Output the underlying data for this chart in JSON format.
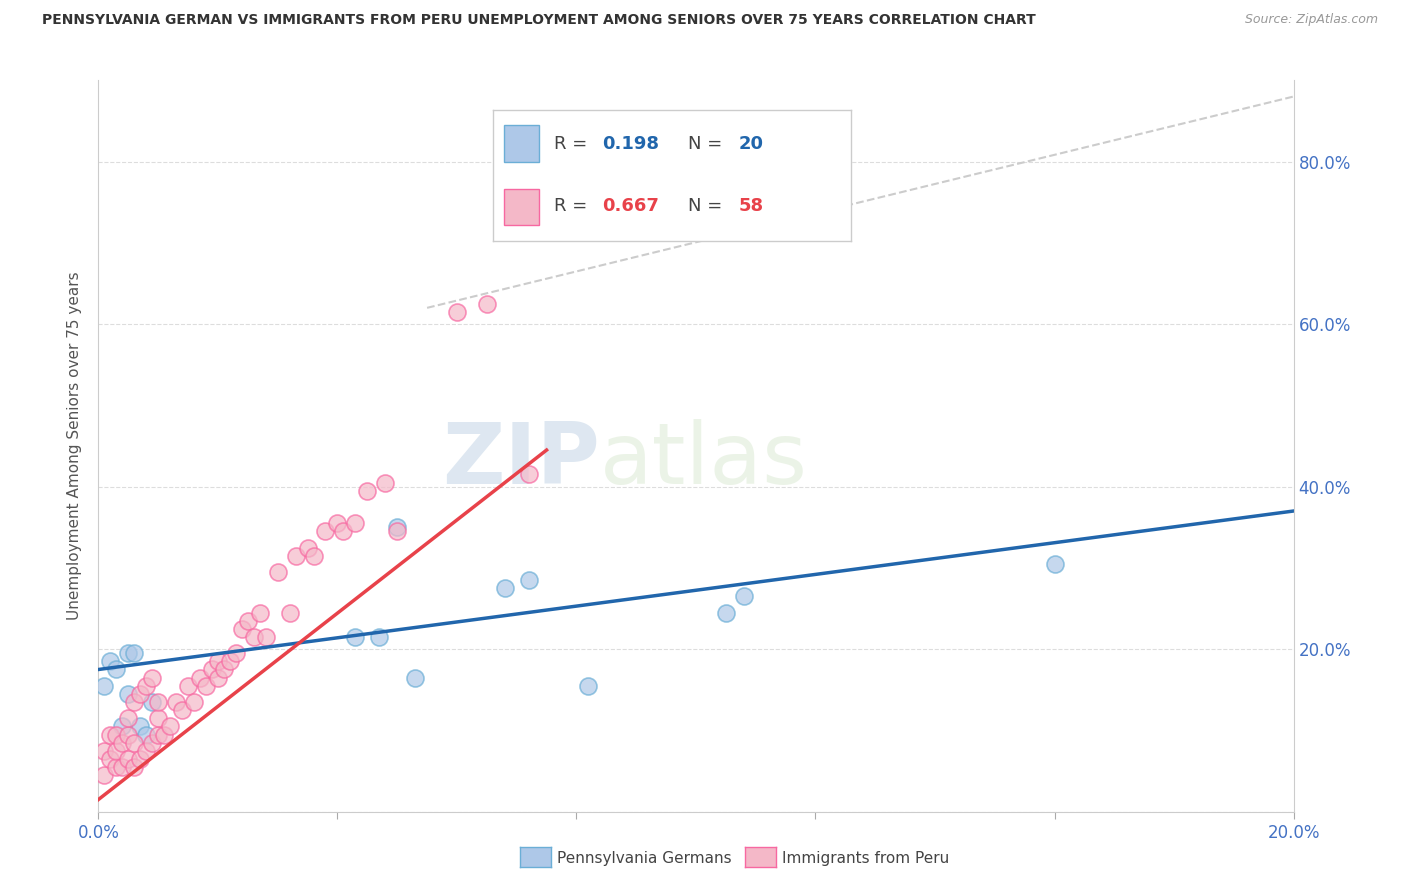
{
  "title": "PENNSYLVANIA GERMAN VS IMMIGRANTS FROM PERU UNEMPLOYMENT AMONG SENIORS OVER 75 YEARS CORRELATION CHART",
  "source": "Source: ZipAtlas.com",
  "ylabel": "Unemployment Among Seniors over 75 years",
  "xlim": [
    0.0,
    0.2
  ],
  "ylim": [
    0.0,
    0.9
  ],
  "xticks": [
    0.0,
    0.04,
    0.08,
    0.12,
    0.16,
    0.2
  ],
  "xticklabels": [
    "0.0%",
    "",
    "",
    "",
    "",
    "20.0%"
  ],
  "yticks": [
    0.0,
    0.2,
    0.4,
    0.6,
    0.8
  ],
  "yticklabels_right": [
    "",
    "20.0%",
    "40.0%",
    "60.0%",
    "80.0%"
  ],
  "blue_scatter_x": [
    0.001,
    0.002,
    0.003,
    0.004,
    0.005,
    0.005,
    0.006,
    0.007,
    0.008,
    0.009,
    0.043,
    0.047,
    0.05,
    0.053,
    0.068,
    0.072,
    0.082,
    0.105,
    0.108,
    0.16
  ],
  "blue_scatter_y": [
    0.155,
    0.185,
    0.175,
    0.105,
    0.195,
    0.145,
    0.195,
    0.105,
    0.095,
    0.135,
    0.215,
    0.215,
    0.35,
    0.165,
    0.275,
    0.285,
    0.155,
    0.245,
    0.265,
    0.305
  ],
  "blue_line_x": [
    0.0,
    0.2
  ],
  "blue_line_y": [
    0.175,
    0.37
  ],
  "pink_scatter_x": [
    0.001,
    0.001,
    0.002,
    0.002,
    0.003,
    0.003,
    0.003,
    0.004,
    0.004,
    0.005,
    0.005,
    0.005,
    0.006,
    0.006,
    0.006,
    0.007,
    0.007,
    0.008,
    0.008,
    0.009,
    0.009,
    0.01,
    0.01,
    0.01,
    0.011,
    0.012,
    0.013,
    0.014,
    0.015,
    0.016,
    0.017,
    0.018,
    0.019,
    0.02,
    0.02,
    0.021,
    0.022,
    0.023,
    0.024,
    0.025,
    0.026,
    0.027,
    0.028,
    0.03,
    0.032,
    0.033,
    0.035,
    0.036,
    0.038,
    0.04,
    0.041,
    0.043,
    0.045,
    0.048,
    0.05,
    0.06,
    0.065,
    0.072
  ],
  "pink_scatter_y": [
    0.045,
    0.075,
    0.065,
    0.095,
    0.055,
    0.075,
    0.095,
    0.055,
    0.085,
    0.065,
    0.095,
    0.115,
    0.055,
    0.135,
    0.085,
    0.065,
    0.145,
    0.075,
    0.155,
    0.085,
    0.165,
    0.095,
    0.115,
    0.135,
    0.095,
    0.105,
    0.135,
    0.125,
    0.155,
    0.135,
    0.165,
    0.155,
    0.175,
    0.165,
    0.185,
    0.175,
    0.185,
    0.195,
    0.225,
    0.235,
    0.215,
    0.245,
    0.215,
    0.295,
    0.245,
    0.315,
    0.325,
    0.315,
    0.345,
    0.355,
    0.345,
    0.355,
    0.395,
    0.405,
    0.345,
    0.615,
    0.625,
    0.415
  ],
  "pink_line_x": [
    0.0,
    0.075
  ],
  "pink_line_y": [
    0.015,
    0.445
  ],
  "diagonal_line_x": [
    0.055,
    0.2
  ],
  "diagonal_line_y": [
    0.62,
    0.88
  ],
  "blue_color": "#aec8e8",
  "pink_color": "#f4b8c8",
  "blue_scatter_edge": "#6baed6",
  "pink_scatter_edge": "#f768a1",
  "blue_line_color": "#2166ac",
  "pink_line_color": "#e8424a",
  "diagonal_color": "#cccccc",
  "watermark_zip": "ZIP",
  "watermark_atlas": "atlas",
  "background_color": "#ffffff",
  "grid_color": "#dddddd",
  "spine_color": "#cccccc",
  "tick_color": "#aaaaaa",
  "axis_label_color": "#555555",
  "right_tick_color": "#4472c4",
  "title_color": "#333333",
  "source_color": "#999999",
  "legend_border_color": "#cccccc"
}
